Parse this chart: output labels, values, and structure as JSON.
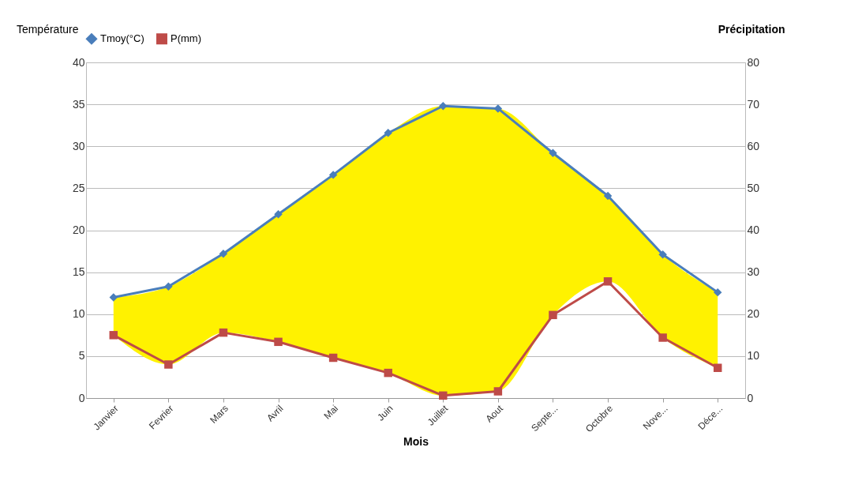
{
  "chart_data": {
    "type": "line",
    "categories": [
      "Janvier",
      "Fevrier",
      "Mars",
      "Avril",
      "Mai",
      "Juin",
      "Juillet",
      "Aout",
      "Septe...",
      "Octobre",
      "Nove...",
      "Déce..."
    ],
    "xlabel": "Mois",
    "ylabel": "Température",
    "y2label": "Précipitation",
    "series": [
      {
        "name": "Tmoy(°C)",
        "color": "#4a7ebb",
        "marker": "diamond",
        "values": [
          12.0,
          13.3,
          17.2,
          21.9,
          26.6,
          31.6,
          34.8,
          34.5,
          29.2,
          24.1,
          17.1,
          12.6
        ],
        "upper": [
          12.0,
          13.3,
          17.2,
          21.9,
          26.6,
          31.6,
          34.8,
          34.5,
          29.2,
          24.1,
          17.1,
          12.6
        ],
        "lower": [
          7.5,
          4.0,
          7.8,
          6.7,
          4.8,
          3.0,
          0.3,
          0.8,
          9.9,
          13.9,
          7.2,
          3.6
        ]
      },
      {
        "name": "P(mm)",
        "color": "#be4b48",
        "marker": "square",
        "axis": "y2",
        "values": [
          15.0,
          8.0,
          15.6,
          13.4,
          9.6,
          6.0,
          0.6,
          1.6,
          19.8,
          27.8,
          14.4,
          7.2
        ]
      }
    ],
    "ylim": [
      0,
      40
    ],
    "yticks": [
      0,
      5,
      10,
      15,
      20,
      25,
      30,
      35,
      40
    ],
    "y2lim": [
      0,
      80
    ],
    "y2ticks": [
      0,
      10,
      20,
      30,
      40,
      50,
      60,
      70,
      80
    ],
    "grid": "y",
    "legend": "top",
    "line_style": "solid"
  }
}
